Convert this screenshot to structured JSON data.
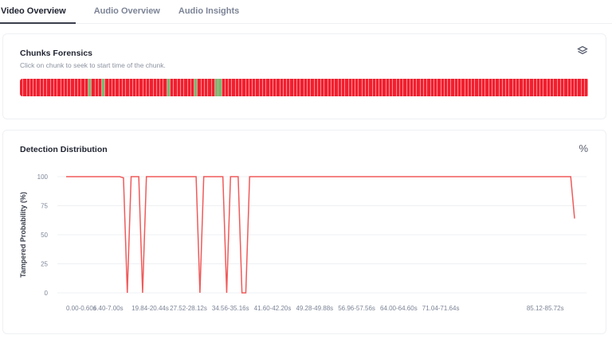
{
  "tabs": [
    {
      "label": "Video Overview",
      "active": true
    },
    {
      "label": "Audio Overview"
    },
    {
      "label": "Audio Insights"
    }
  ],
  "chunks_card": {
    "title": "Chunks Forensics",
    "subtitle": "Click on chunk to seek to start time of the chunk.",
    "icon": "layers-icon",
    "chunk_count": 166,
    "authentic_chunks": [
      20,
      24,
      43,
      51,
      57,
      58
    ],
    "colors": {
      "tampered": "#f0202f",
      "authentic": "#6cc070"
    }
  },
  "distribution_card": {
    "title": "Detection Distribution",
    "icon": "percent-icon"
  },
  "chart_data": {
    "type": "line",
    "ylabel": "Tampered Probability (%)",
    "ylim": [
      0,
      100
    ],
    "yticks": [
      0,
      25,
      50,
      75,
      100
    ],
    "grid": true,
    "color": "#f05a5a",
    "x_tick_labels": [
      "0.00-0.60s",
      "6.40-7.00s",
      "19.84-20.44s",
      "27.52-28.12s",
      "34.56-35.16s",
      "41.60-42.20s",
      "49.28-49.88s",
      "56.96-57.56s",
      "64.00-64.60s",
      "71.04-71.64s",
      "85.12-85.72s"
    ],
    "x_tick_indices": [
      0,
      11,
      22,
      32,
      43,
      54,
      65,
      76,
      87,
      98,
      127
    ],
    "point_count": 134,
    "default_value": 100,
    "overrides": {
      "15": 99,
      "16": 0,
      "20": 0,
      "35": 0,
      "42": 0,
      "46": 0,
      "47": 0,
      "133": 64
    }
  }
}
